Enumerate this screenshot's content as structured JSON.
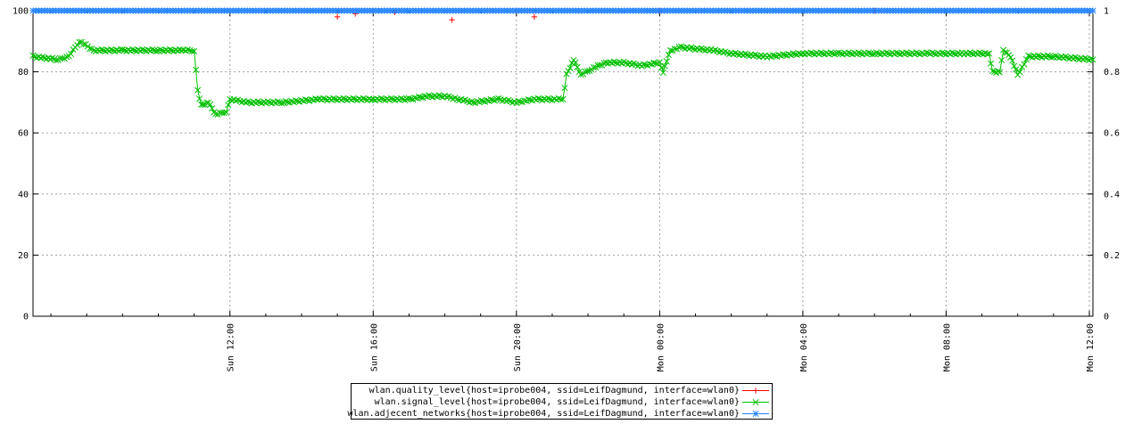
{
  "chart_data": {
    "type": "line",
    "title": "",
    "xlabel": "",
    "ylabel": "",
    "ylim": [
      0,
      100
    ],
    "y2lim": [
      0,
      1
    ],
    "y_ticks": [
      "0",
      "20",
      "40",
      "60",
      "80",
      "100"
    ],
    "y2_ticks": [
      "0",
      "0.2",
      "0.4",
      "0.6",
      "0.8",
      "1"
    ],
    "x_range_hours": [
      6.5,
      36.1
    ],
    "x_ticks": [
      {
        "label": "Sun 12:00",
        "hour": 12
      },
      {
        "label": "Sun 16:00",
        "hour": 16
      },
      {
        "label": "Sun 20:00",
        "hour": 20
      },
      {
        "label": "Mon 00:00",
        "hour": 24
      },
      {
        "label": "Mon 04:00",
        "hour": 28
      },
      {
        "label": "Mon 08:00",
        "hour": 32
      },
      {
        "label": "Mon 12:00",
        "hour": 36
      }
    ],
    "grid": true,
    "legend_placement": "bottom-center",
    "series": [
      {
        "name": "wlan.quality_level{host=iprobe004, ssid=LeifDagmund, interface=wlan0}",
        "color": "#ff0000",
        "marker": "+",
        "axis": "left",
        "points": [
          [
            6.5,
            100
          ],
          [
            15.0,
            98
          ],
          [
            15.5,
            99
          ],
          [
            16.0,
            100
          ],
          [
            16.6,
            99.5
          ],
          [
            18.2,
            97
          ],
          [
            20.0,
            100
          ],
          [
            20.5,
            98
          ],
          [
            24.0,
            100
          ],
          [
            30.0,
            100
          ],
          [
            36.1,
            100
          ]
        ]
      },
      {
        "name": "wlan.signal_level{host=iprobe004, ssid=LeifDagmund, interface=wlan0}",
        "color": "#00c000",
        "marker": "x",
        "axis": "left",
        "points": [
          [
            6.5,
            85
          ],
          [
            7.2,
            84
          ],
          [
            7.5,
            85
          ],
          [
            7.8,
            90
          ],
          [
            8.2,
            87
          ],
          [
            9.0,
            87
          ],
          [
            10.0,
            87
          ],
          [
            10.7,
            87
          ],
          [
            11.0,
            87
          ],
          [
            11.1,
            74
          ],
          [
            11.2,
            69
          ],
          [
            11.4,
            70
          ],
          [
            11.6,
            66
          ],
          [
            11.9,
            67
          ],
          [
            12.0,
            71
          ],
          [
            12.5,
            70
          ],
          [
            13.5,
            70
          ],
          [
            14.5,
            71
          ],
          [
            15.0,
            71
          ],
          [
            16.0,
            71
          ],
          [
            17.0,
            71
          ],
          [
            17.5,
            72
          ],
          [
            18.0,
            72
          ],
          [
            18.4,
            71
          ],
          [
            18.8,
            70
          ],
          [
            19.5,
            71
          ],
          [
            20.0,
            70
          ],
          [
            20.5,
            71
          ],
          [
            21.0,
            71
          ],
          [
            21.3,
            71
          ],
          [
            21.4,
            79
          ],
          [
            21.6,
            84
          ],
          [
            21.8,
            79
          ],
          [
            22.1,
            81
          ],
          [
            22.5,
            83
          ],
          [
            23.0,
            83
          ],
          [
            23.5,
            82
          ],
          [
            24.0,
            83
          ],
          [
            24.1,
            80
          ],
          [
            24.3,
            87
          ],
          [
            24.6,
            88
          ],
          [
            25.5,
            87
          ],
          [
            26.0,
            86
          ],
          [
            27.0,
            85
          ],
          [
            28.0,
            86
          ],
          [
            29.0,
            86
          ],
          [
            30.0,
            86
          ],
          [
            31.5,
            86
          ],
          [
            32.5,
            86
          ],
          [
            33.2,
            86
          ],
          [
            33.3,
            80
          ],
          [
            33.5,
            80
          ],
          [
            33.6,
            87
          ],
          [
            33.8,
            85
          ],
          [
            34.0,
            79
          ],
          [
            34.3,
            85
          ],
          [
            35.0,
            85
          ],
          [
            36.1,
            84
          ]
        ]
      },
      {
        "name": "wlan.adjecent_networks{host=iprobe004, ssid=LeifDagmund, interface=wlan0}",
        "color": "#2080ff",
        "marker": "*",
        "axis": "right",
        "points": [
          [
            6.5,
            1
          ],
          [
            36.1,
            1
          ]
        ]
      }
    ]
  }
}
